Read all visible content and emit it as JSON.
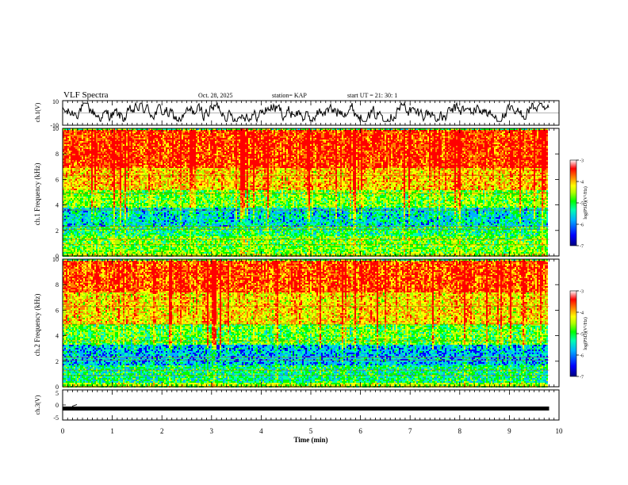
{
  "header": {
    "title": "VLF Spectra",
    "date": "Oct. 28, 2025",
    "station": "station= KAP",
    "start": "start  UT  =   21: 30: 1"
  },
  "colors": {
    "trace": "#000000",
    "colormap": [
      "#000080",
      "#0000ff",
      "#00b0ff",
      "#00ffb0",
      "#00ff00",
      "#b0ff00",
      "#ffff00",
      "#ff8000",
      "#ff0000",
      "#ffffff"
    ]
  },
  "chart_data": [
    {
      "type": "line",
      "panel": "ch1",
      "title": "VLF Spectra",
      "ylabel": "ch.1(V)",
      "xlim": [
        0,
        10
      ],
      "ylim": [
        -10,
        10
      ],
      "yticks": [
        "10",
        "-10"
      ],
      "x_end": 9.8,
      "description_series": {
        "name": "ch.1 waveform envelope",
        "mean": 0,
        "amplitude_range": [
          -7,
          8
        ]
      }
    },
    {
      "type": "heatmap",
      "panel": "ch1_spec",
      "ylabel": "ch.1  Frequency  (kHz)",
      "ylim": [
        0,
        10
      ],
      "yticks": [
        "0",
        "2",
        "4",
        "6",
        "8",
        "10"
      ],
      "xlim": [
        0,
        10
      ],
      "x_end": 9.8,
      "colorbar": {
        "label": "log(PSD)(V²/Hz)",
        "range": [
          -7,
          -3
        ],
        "ticks": [
          "-3",
          "-4",
          "-5",
          "-6",
          "-7"
        ]
      },
      "bands_khz": [
        {
          "from": 0,
          "to": 0.3,
          "level": -4.5
        },
        {
          "from": 0.3,
          "to": 1.6,
          "level": -4.8
        },
        {
          "from": 1.6,
          "to": 2.4,
          "level": -5.2
        },
        {
          "from": 2.4,
          "to": 3.8,
          "level": -5.6
        },
        {
          "from": 3.8,
          "to": 5.2,
          "level": -4.8
        },
        {
          "from": 5.2,
          "to": 7.0,
          "level": -4.0
        },
        {
          "from": 7.0,
          "to": 10.0,
          "level": -3.4
        }
      ]
    },
    {
      "type": "heatmap",
      "panel": "ch2_spec",
      "ylabel": "ch.2  Frequency  (kHz)",
      "ylim": [
        0,
        10
      ],
      "yticks": [
        "0",
        "2",
        "4",
        "6",
        "8",
        "10"
      ],
      "xlim": [
        0,
        10
      ],
      "x_end": 9.8,
      "colorbar": {
        "label": "log(PSD)(V²/Hz)",
        "range": [
          -7,
          -3
        ],
        "ticks": [
          "-3",
          "-4",
          "-5",
          "-6",
          "-7"
        ]
      },
      "bands_khz": [
        {
          "from": 0,
          "to": 0.4,
          "level": -4.6
        },
        {
          "from": 0.4,
          "to": 1.8,
          "level": -5.3
        },
        {
          "from": 1.8,
          "to": 3.4,
          "level": -5.8
        },
        {
          "from": 3.4,
          "to": 5.0,
          "level": -4.9
        },
        {
          "from": 5.0,
          "to": 7.5,
          "level": -4.1
        },
        {
          "from": 7.5,
          "to": 10.0,
          "level": -3.5
        }
      ]
    },
    {
      "type": "line",
      "panel": "ch3",
      "ylabel": "ch.3(V)",
      "xlabel": "Time  (min)",
      "xlim": [
        0,
        10
      ],
      "ylim": [
        -5,
        5
      ],
      "yticks": [
        "5",
        "0",
        "-5"
      ],
      "xticks": [
        "0",
        "1",
        "2",
        "3",
        "4",
        "5",
        "6",
        "7",
        "8",
        "9",
        "10"
      ],
      "x_end": 9.8,
      "description_series": {
        "name": "ch.3 thick trace",
        "value": -1.2
      }
    }
  ]
}
